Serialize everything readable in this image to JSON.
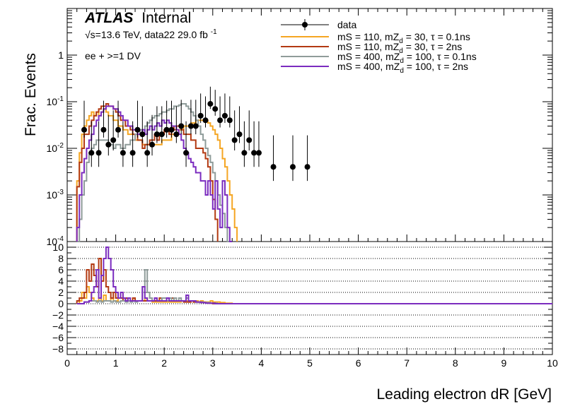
{
  "chart_data": {
    "type": "histogram",
    "experiment": "ATLAS",
    "status": "Internal",
    "energy_label": "√s=13.6 TeV, data22 29.0 fb",
    "energy_sup": "-1",
    "selection": "ee + >=1 DV",
    "ylabel": "Frac. Events",
    "xlabel": "Leading electron dR [GeV]",
    "log_y": true,
    "grid_lower": true,
    "legend_position": "top-right",
    "main_ylim": [
      0.0001,
      10
    ],
    "ratio_ylim": [
      -9,
      11
    ],
    "xlim": [
      0,
      10
    ],
    "x_ticks": [
      "0",
      "1",
      "2",
      "3",
      "4",
      "5",
      "6",
      "7",
      "8",
      "9",
      "10"
    ],
    "main_y_ticks": [
      "1",
      "10^-1",
      "10^-2",
      "10^-3",
      "10^-4"
    ],
    "ratio_y_ticks": [
      "10",
      "8",
      "6",
      "4",
      "2",
      "0",
      "−2",
      "−4",
      "−6",
      "−8"
    ],
    "legend": [
      {
        "name": "data",
        "type": "marker"
      },
      {
        "name": "mS = 110, mZd = 30, τ = 0.1ns",
        "color": "#f5a623"
      },
      {
        "name": "mS = 110, mZd = 30, τ = 2ns",
        "color": "#b33a12"
      },
      {
        "name": "mS = 400, mZd = 100, τ = 0.1ns",
        "color": "#8f9c9a"
      },
      {
        "name": "mS = 400, mZd = 100, τ = 2ns",
        "color": "#7b2cbf"
      }
    ],
    "legend_text": [
      {
        "pre": "mS = 110, mZ",
        "sub": "d",
        "post": " = 30, τ = 0.1ns"
      },
      {
        "pre": "mS = 110, mZ",
        "sub": "d",
        "post": " = 30, τ = 2ns"
      },
      {
        "pre": "mS = 400, mZ",
        "sub": "d",
        "post": " = 100, τ = 0.1ns"
      },
      {
        "pre": "mS = 400, mZ",
        "sub": "d",
        "post": " = 100, τ = 2ns"
      }
    ],
    "data_points": [
      {
        "x": 0.35,
        "y": 0.025,
        "err": [
          0.008,
          0.08
        ]
      },
      {
        "x": 0.5,
        "y": 0.008,
        "err": [
          0.004,
          0.03
        ]
      },
      {
        "x": 0.65,
        "y": 0.008,
        "err": [
          0.004,
          0.03
        ]
      },
      {
        "x": 0.75,
        "y": 0.025,
        "err": [
          0.008,
          0.08
        ]
      },
      {
        "x": 0.85,
        "y": 0.012,
        "err": [
          0.005,
          0.04
        ]
      },
      {
        "x": 0.95,
        "y": 0.015,
        "err": [
          0.006,
          0.05
        ]
      },
      {
        "x": 1.05,
        "y": 0.025,
        "err": [
          0.008,
          0.08
        ]
      },
      {
        "x": 1.15,
        "y": 0.008,
        "err": [
          0.004,
          0.03
        ]
      },
      {
        "x": 1.35,
        "y": 0.008,
        "err": [
          0.004,
          0.03
        ]
      },
      {
        "x": 1.45,
        "y": 0.025,
        "err": [
          0.008,
          0.08
        ]
      },
      {
        "x": 1.55,
        "y": 0.02,
        "err": [
          0.007,
          0.06
        ]
      },
      {
        "x": 1.65,
        "y": 0.008,
        "err": [
          0.004,
          0.03
        ]
      },
      {
        "x": 1.75,
        "y": 0.012,
        "err": [
          0.005,
          0.04
        ]
      },
      {
        "x": 1.85,
        "y": 0.02,
        "err": [
          0.007,
          0.06
        ]
      },
      {
        "x": 1.95,
        "y": 0.02,
        "err": [
          0.007,
          0.06
        ]
      },
      {
        "x": 2.05,
        "y": 0.025,
        "err": [
          0.008,
          0.08
        ]
      },
      {
        "x": 2.15,
        "y": 0.025,
        "err": [
          0.008,
          0.08
        ]
      },
      {
        "x": 2.25,
        "y": 0.02,
        "err": [
          0.007,
          0.06
        ]
      },
      {
        "x": 2.35,
        "y": 0.03,
        "err": [
          0.01,
          0.08
        ]
      },
      {
        "x": 2.45,
        "y": 0.008,
        "err": [
          0.004,
          0.03
        ]
      },
      {
        "x": 2.55,
        "y": 0.03,
        "err": [
          0.01,
          0.08
        ]
      },
      {
        "x": 2.65,
        "y": 0.03,
        "err": [
          0.01,
          0.08
        ]
      },
      {
        "x": 2.75,
        "y": 0.05,
        "err": [
          0.015,
          0.1
        ]
      },
      {
        "x": 2.85,
        "y": 0.04,
        "err": [
          0.012,
          0.09
        ]
      },
      {
        "x": 2.95,
        "y": 0.09,
        "err": [
          0.02,
          0.12
        ]
      },
      {
        "x": 3.05,
        "y": 0.07,
        "err": [
          0.02,
          0.11
        ]
      },
      {
        "x": 3.15,
        "y": 0.04,
        "err": [
          0.012,
          0.09
        ]
      },
      {
        "x": 3.25,
        "y": 0.05,
        "err": [
          0.015,
          0.1
        ]
      },
      {
        "x": 3.35,
        "y": 0.04,
        "err": [
          0.012,
          0.09
        ]
      },
      {
        "x": 3.45,
        "y": 0.015,
        "err": [
          0.006,
          0.05
        ]
      },
      {
        "x": 3.55,
        "y": 0.02,
        "err": [
          0.007,
          0.06
        ]
      },
      {
        "x": 3.65,
        "y": 0.008,
        "err": [
          0.004,
          0.03
        ]
      },
      {
        "x": 3.75,
        "y": 0.015,
        "err": [
          0.006,
          0.05
        ]
      },
      {
        "x": 3.85,
        "y": 0.008,
        "err": [
          0.004,
          0.03
        ]
      },
      {
        "x": 3.95,
        "y": 0.008,
        "err": [
          0.004,
          0.03
        ]
      },
      {
        "x": 4.25,
        "y": 0.004,
        "err": [
          0.002,
          0.015
        ]
      },
      {
        "x": 4.65,
        "y": 0.004,
        "err": [
          0.002,
          0.015
        ]
      },
      {
        "x": 4.95,
        "y": 0.004,
        "err": [
          0.002,
          0.015
        ]
      }
    ],
    "bin_width": 0.05,
    "series": [
      {
        "name": "mS = 110, mZd = 30, τ = 0.1ns",
        "color": "#f5a623",
        "start": 0.2,
        "values": [
          0.002,
          0.008,
          0.02,
          0.03,
          0.04,
          0.05,
          0.06,
          0.05,
          0.06,
          0.05,
          0.06,
          0.07,
          0.06,
          0.05,
          0.05,
          0.04,
          0.04,
          0.03,
          0.03,
          0.025,
          0.025,
          0.02,
          0.02,
          0.02,
          0.015,
          0.015,
          0.015,
          0.012,
          0.012,
          0.012,
          0.012,
          0.012,
          0.012,
          0.012,
          0.012,
          0.015,
          0.015,
          0.015,
          0.015,
          0.02,
          0.02,
          0.02,
          0.025,
          0.025,
          0.03,
          0.03,
          0.03,
          0.035,
          0.035,
          0.04,
          0.04,
          0.04,
          0.04,
          0.04,
          0.035,
          0.03,
          0.025,
          0.02,
          0.015,
          0.01,
          0.006,
          0.004,
          0.002,
          0.001,
          0.0005,
          0.0002
        ],
        "ratio": [
          0,
          0.5,
          2,
          1,
          3,
          2,
          1,
          0.5,
          0.5,
          1,
          0.5,
          1.5,
          0.5,
          0.5,
          1,
          0.5,
          0.5,
          1,
          2,
          1,
          0.5,
          0.5,
          0.5,
          1,
          0.5,
          0.5,
          0.5,
          0.5,
          1,
          0.5,
          0.5,
          0.3,
          0.3,
          0.3,
          0.3,
          0.3,
          0.3,
          0.3,
          0.3,
          0.3,
          0.3,
          0.3,
          0.3,
          0.5,
          0.5,
          0.5,
          0.3,
          0.5,
          0.3,
          0.5,
          0.3,
          0.5,
          0.3,
          0.3,
          0.3,
          0.5,
          0.3,
          0.3,
          0.3,
          0.2,
          0.2,
          0.1,
          0.1,
          0.1,
          0,
          0
        ]
      },
      {
        "name": "mS = 110, mZd = 30, τ = 2ns",
        "color": "#b33a12",
        "start": 0.2,
        "values": [
          0.0015,
          0.005,
          0.01,
          0.02,
          0.02,
          0.03,
          0.04,
          0.05,
          0.06,
          0.07,
          0.08,
          0.08,
          0.09,
          0.08,
          0.08,
          0.07,
          0.06,
          0.05,
          0.04,
          0.04,
          0.03,
          0.03,
          0.025,
          0.02,
          0.02,
          0.015,
          0.015,
          0.01,
          0.012,
          0.012,
          0.015,
          0.015,
          0.02,
          0.015,
          0.02,
          0.02,
          0.025,
          0.025,
          0.02,
          0.03,
          0.025,
          0.03,
          0.03,
          0.025,
          0.02,
          0.02,
          0.02,
          0.015,
          0.015,
          0.01,
          0.01,
          0.01,
          0.008,
          0.006,
          0.004,
          0.002,
          0.0008,
          0.0003
        ],
        "ratio": [
          0.5,
          1,
          1,
          2,
          6,
          4,
          7,
          5,
          3,
          8,
          4,
          6,
          3,
          2,
          1,
          2,
          1,
          1,
          1,
          0.5,
          1,
          0.5,
          0.5,
          1,
          0.5,
          0.5,
          0.5,
          0.5,
          0.5,
          0.5,
          0.5,
          0.5,
          0.5,
          0.5,
          1,
          0.5,
          0.5,
          0.5,
          0.5,
          1,
          0.5,
          0.5,
          0.5,
          0.5,
          0.3,
          0.3,
          0.3,
          0.5,
          0.3,
          0.3,
          0.3,
          0.3,
          0.2,
          0.2,
          0.1,
          0.1,
          0,
          0
        ]
      },
      {
        "name": "mS = 400, mZd = 100, τ = 0.1ns",
        "color": "#8f9c9a",
        "start": 0.2,
        "values": [
          0.0001,
          0.0003,
          0.001,
          0.002,
          0.005,
          0.008,
          0.01,
          0.012,
          0.015,
          0.015,
          0.015,
          0.015,
          0.015,
          0.012,
          0.012,
          0.01,
          0.012,
          0.012,
          0.01,
          0.01,
          0.012,
          0.012,
          0.015,
          0.015,
          0.02,
          0.02,
          0.025,
          0.025,
          0.03,
          0.035,
          0.04,
          0.045,
          0.05,
          0.05,
          0.055,
          0.06,
          0.06,
          0.065,
          0.07,
          0.07,
          0.08,
          0.08,
          0.085,
          0.09,
          0.09,
          0.08,
          0.07,
          0.06,
          0.05,
          0.04,
          0.03,
          0.02,
          0.015,
          0.01,
          0.007,
          0.005,
          0.003,
          0.002,
          0.001,
          0.0006,
          0.0004,
          0.0002,
          0.0001
        ],
        "ratio": [
          0,
          0,
          0,
          0.3,
          0.3,
          0.5,
          0.5,
          0.5,
          0.3,
          0.5,
          0.3,
          0.5,
          0.5,
          0.5,
          0.3,
          0.5,
          0.3,
          0.3,
          0.5,
          0.5,
          0.3,
          0.5,
          0.3,
          0.5,
          0.3,
          0.5,
          0.5,
          3,
          6,
          2,
          1,
          0.5,
          1,
          0.5,
          0.5,
          1,
          1,
          0.5,
          1,
          0.5,
          1,
          0.5,
          1,
          0.5,
          0.5,
          1,
          0.5,
          0.5,
          0.5,
          0.3,
          0.3,
          0.3,
          0.2,
          0.2,
          0.2,
          0.1,
          0.1,
          0.1,
          0,
          0,
          0,
          0,
          0
        ]
      },
      {
        "name": "mS = 400, mZd = 100, τ = 2ns",
        "color": "#7b2cbf",
        "start": 0.2,
        "values": [
          0.0002,
          0.001,
          0.003,
          0.006,
          0.01,
          0.015,
          0.02,
          0.03,
          0.04,
          0.05,
          0.06,
          0.07,
          0.08,
          0.08,
          0.08,
          0.07,
          0.07,
          0.06,
          0.05,
          0.04,
          0.04,
          0.03,
          0.03,
          0.025,
          0.025,
          0.02,
          0.02,
          0.025,
          0.02,
          0.025,
          0.03,
          0.025,
          0.03,
          0.035,
          0.03,
          0.04,
          0.035,
          0.04,
          0.035,
          0.03,
          0.03,
          0.025,
          0.02,
          0.015,
          0.01,
          0.008,
          0.006,
          0.005,
          0.004,
          0.003,
          0.003,
          0.002,
          0.002,
          0.001,
          0.002,
          0.001,
          0.0005,
          0.002,
          0.0005,
          0.0002,
          0.002,
          0.001,
          0.0002,
          0.0001
        ],
        "ratio": [
          0,
          0,
          0,
          0.3,
          0.3,
          0.5,
          2,
          3,
          6,
          1,
          5,
          8,
          10,
          8,
          6,
          3,
          2,
          1,
          2,
          1,
          0.5,
          1,
          0.5,
          0.5,
          0.5,
          0.5,
          0.5,
          3,
          1,
          0.5,
          0.5,
          0.5,
          1,
          0.5,
          0.5,
          0.5,
          0.5,
          1,
          0.5,
          0.5,
          0.5,
          0.5,
          0.5,
          0.5,
          0.5,
          1.5,
          0.5,
          0.5,
          0.5,
          0.3,
          0.3,
          0.2,
          0.2,
          0.1,
          0.1,
          0.1,
          0.1,
          0,
          0,
          0,
          0,
          0,
          0,
          0
        ]
      }
    ]
  }
}
